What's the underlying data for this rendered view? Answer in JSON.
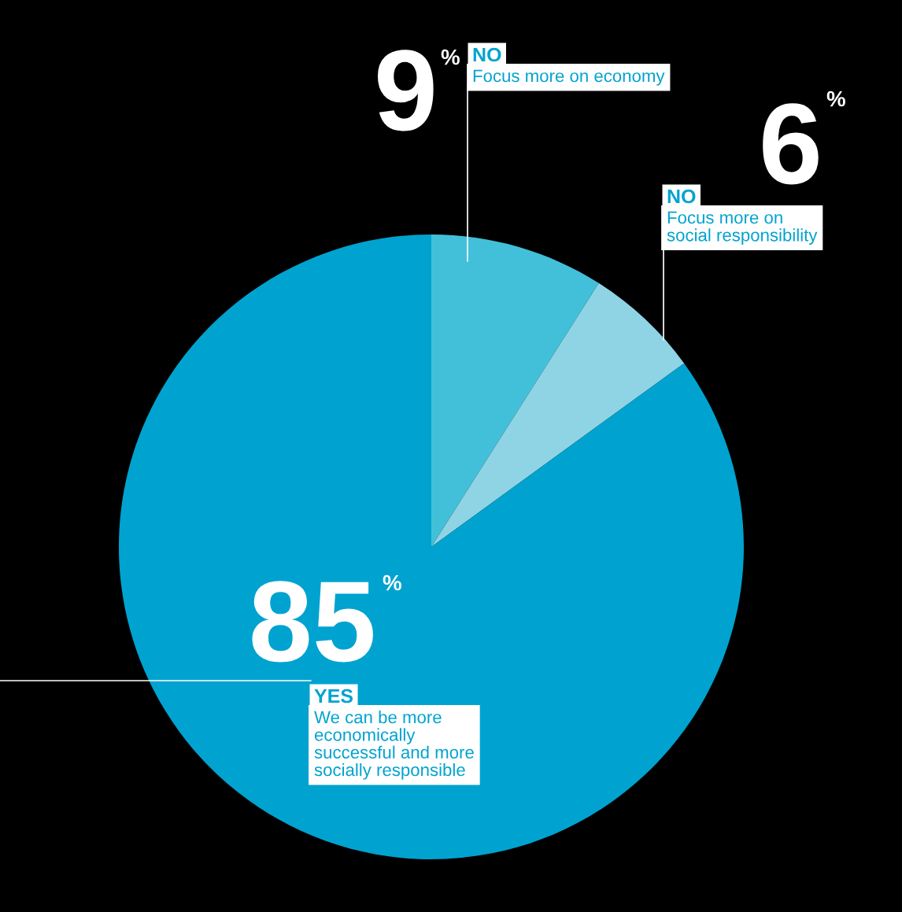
{
  "chart_data": {
    "type": "pie",
    "categories": [
      "NO\nFocus more on economy",
      "NO\nFocus more on\nsocial responsibility",
      "YES\nWe can be more\neconomically\nsuccessful and more\nsocially responsible"
    ],
    "values": [
      9,
      6,
      85
    ],
    "colors": [
      "#42c0da",
      "#8fd4e4",
      "#00a3d0"
    ],
    "value_labels": [
      "9%",
      "6%",
      "85%"
    ]
  }
}
